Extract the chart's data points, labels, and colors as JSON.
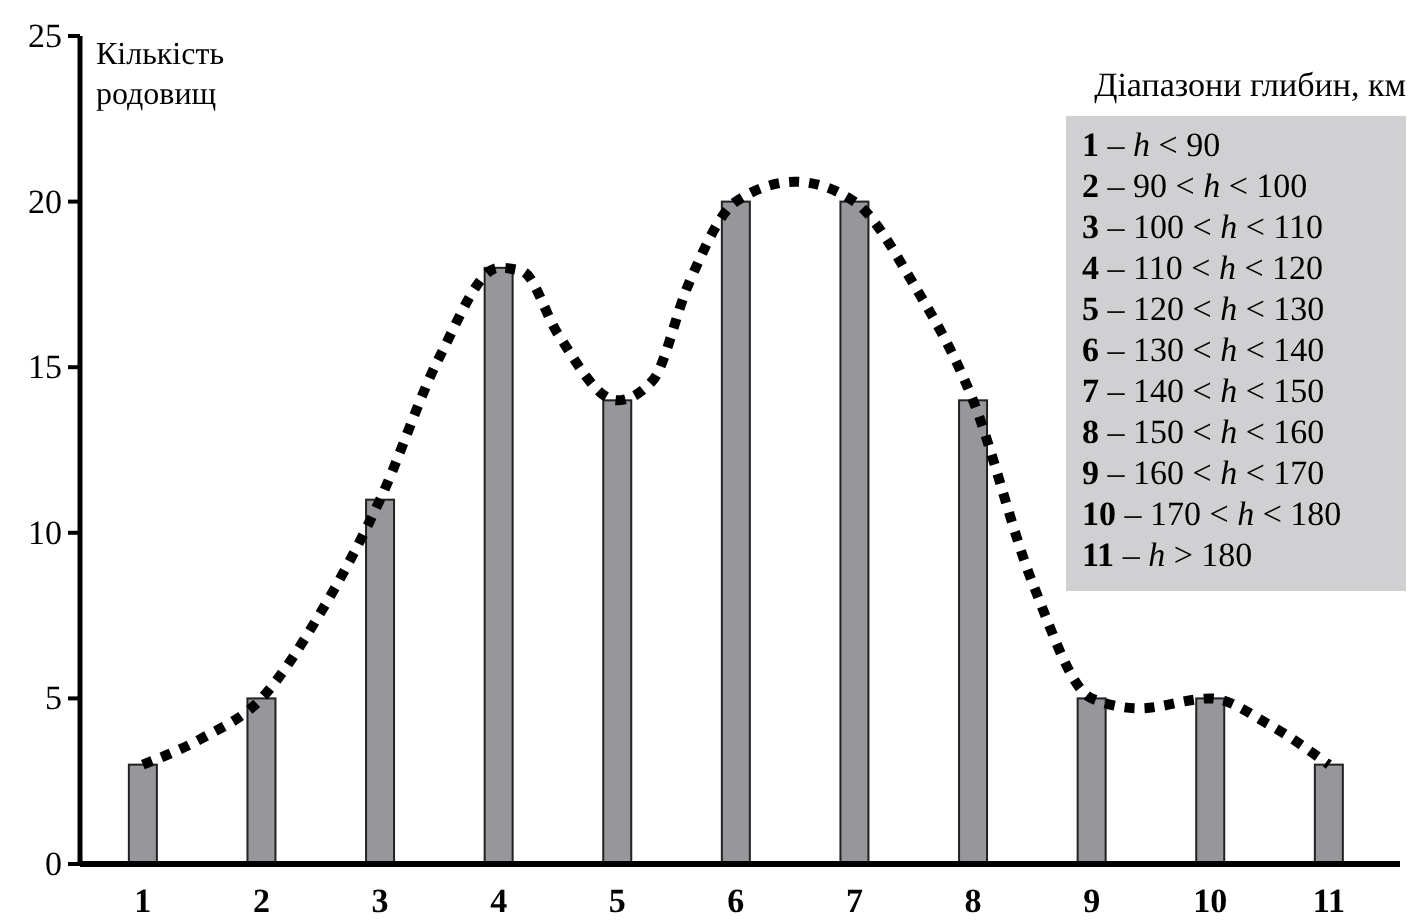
{
  "chart_data": {
    "type": "bar",
    "ylabel": "Кількість родовищ",
    "x": [
      1,
      2,
      3,
      4,
      5,
      6,
      7,
      8,
      9,
      10,
      11
    ],
    "xlim": [
      0.47,
      11.6
    ],
    "xticks": [
      1,
      2,
      3,
      4,
      5,
      6,
      7,
      8,
      9,
      10,
      11
    ],
    "ylim": [
      0,
      25
    ],
    "yticks": [
      0,
      5,
      10,
      15,
      20,
      25
    ],
    "series": [
      {
        "color": "#97979b",
        "values": [
          3,
          5,
          11,
          18,
          14,
          20,
          20,
          14,
          5,
          5,
          3
        ]
      },
      {
        "type": "line",
        "color": "#000000",
        "line_style": "dotted",
        "x": [
          1,
          1.5,
          2,
          2.5,
          3,
          3.5,
          4,
          4.2,
          4.5,
          5,
          5.3,
          5.6,
          6,
          6.5,
          7,
          7.5,
          8,
          8.5,
          9,
          9.4,
          10,
          10.5,
          11
        ],
        "values": [
          3,
          3.8,
          5,
          7.6,
          11,
          15.3,
          18,
          17.9,
          16,
          14,
          14.6,
          17.5,
          20,
          20.6,
          20,
          17.5,
          14,
          8.5,
          5,
          4.7,
          5,
          4.2,
          3
        ]
      }
    ],
    "legend_title": "Діапазони глибин, км",
    "annotations": [
      "1 – h < 90",
      "2 – 90 < h < 100",
      "3 – 100 < h < 110",
      "4 – 110 < h < 120",
      "5 – 120 < h < 130",
      "6 – 130 < h < 140",
      "7 – 140 < h < 150",
      "8 – 150 < h < 160",
      "9 – 160 < h < 170",
      "10 – 170 < h < 180",
      "11 – h > 180"
    ],
    "grid": false
  }
}
